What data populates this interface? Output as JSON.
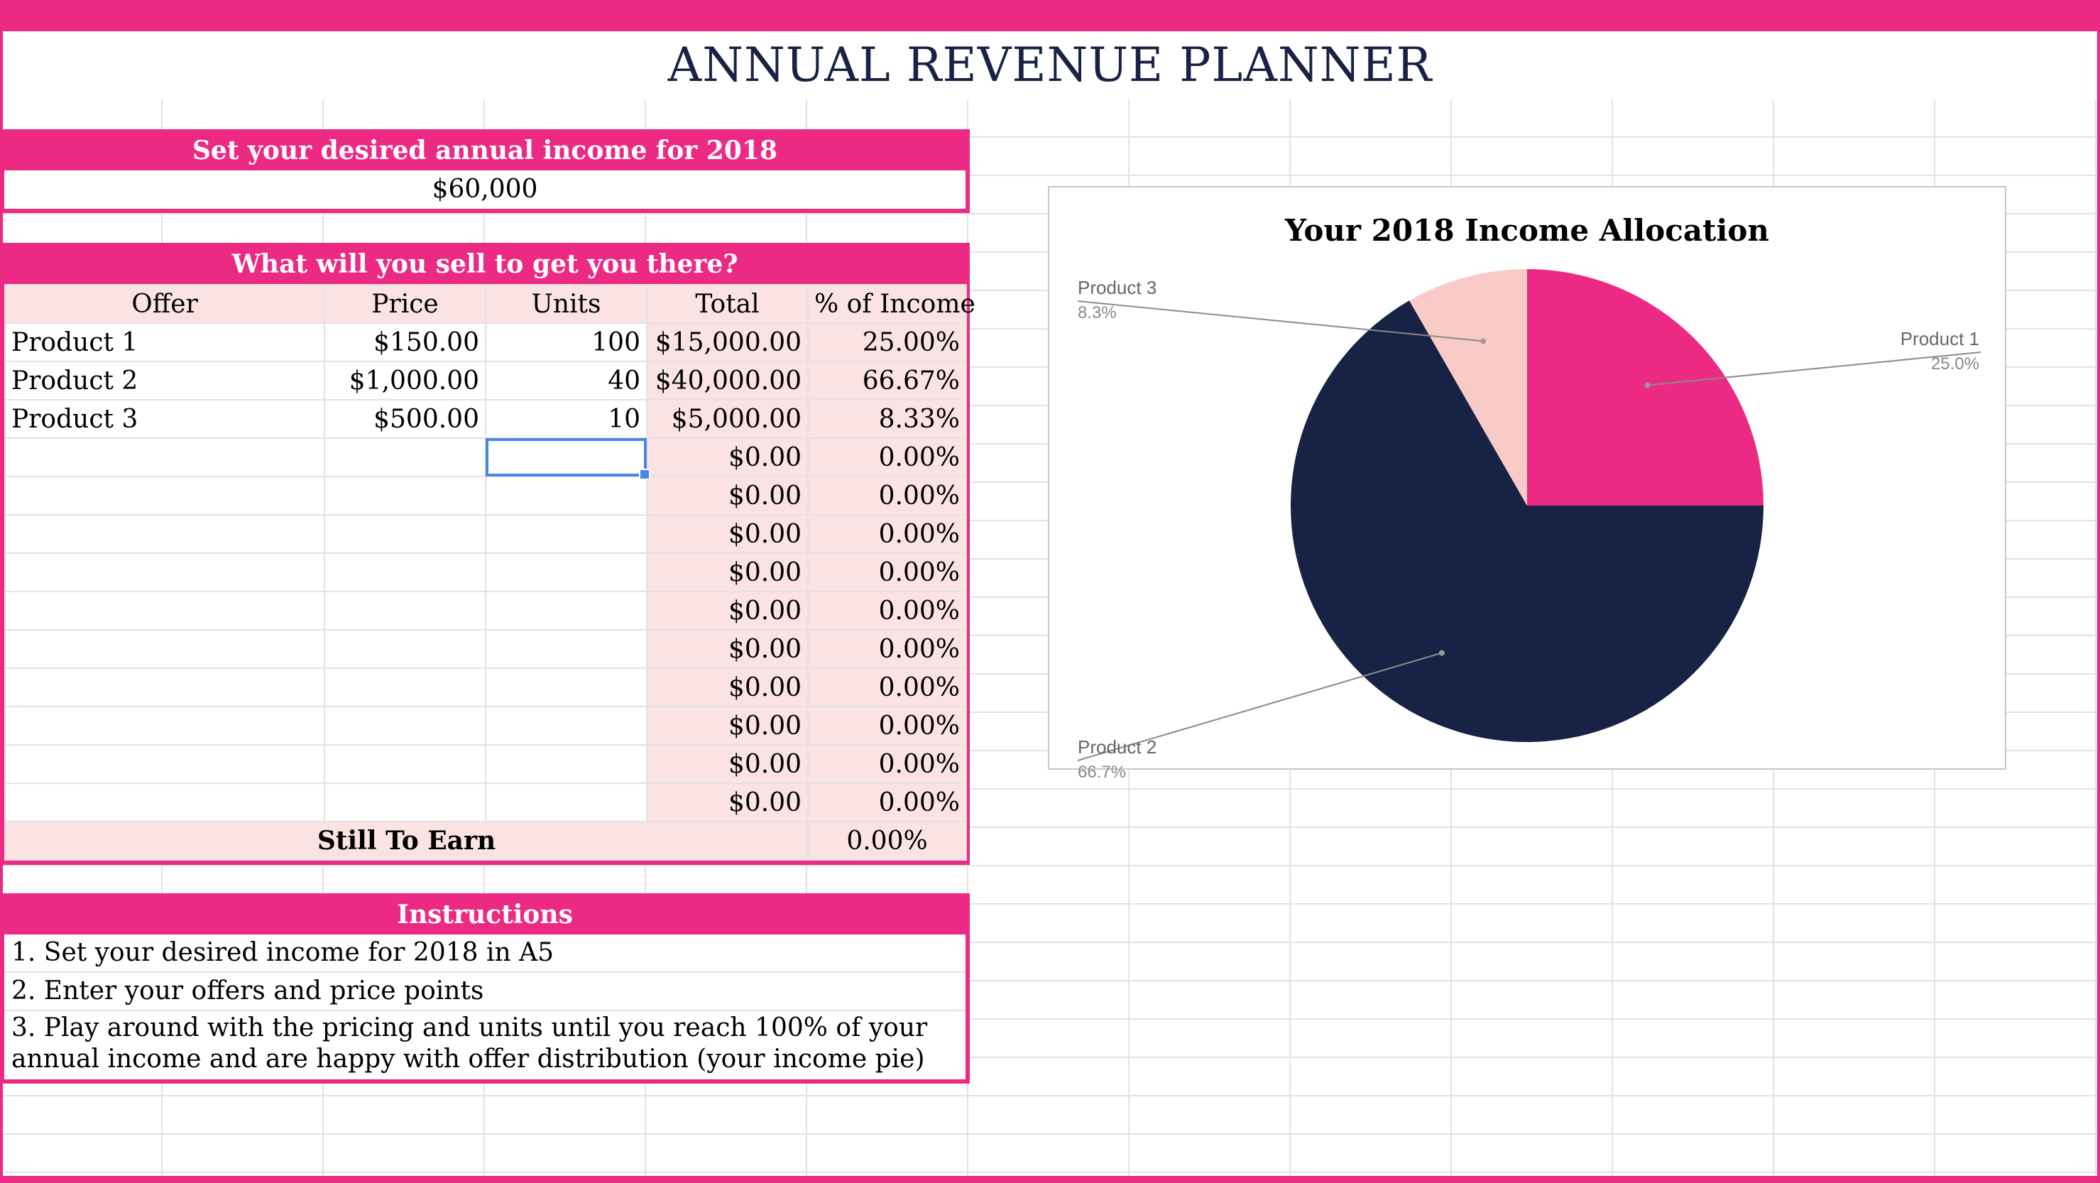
{
  "title": "ANNUAL REVENUE PLANNER",
  "income": {
    "header": "Set your desired annual income for 2018",
    "value": "$60,000"
  },
  "sell": {
    "header": "What will you sell to get you there?",
    "columns": [
      "Offer",
      "Price",
      "Units",
      "Total",
      "% of Income"
    ],
    "rows": [
      [
        "Product 1",
        "$150.00",
        "100",
        "$15,000.00",
        "25.00%"
      ],
      [
        "Product 2",
        "$1,000.00",
        "40",
        "$40,000.00",
        "66.67%"
      ],
      [
        "Product 3",
        "$500.00",
        "10",
        "$5,000.00",
        "8.33%"
      ],
      [
        "",
        "",
        "",
        "$0.00",
        "0.00%"
      ],
      [
        "",
        "",
        "",
        "$0.00",
        "0.00%"
      ],
      [
        "",
        "",
        "",
        "$0.00",
        "0.00%"
      ],
      [
        "",
        "",
        "",
        "$0.00",
        "0.00%"
      ],
      [
        "",
        "",
        "",
        "$0.00",
        "0.00%"
      ],
      [
        "",
        "",
        "",
        "$0.00",
        "0.00%"
      ],
      [
        "",
        "",
        "",
        "$0.00",
        "0.00%"
      ],
      [
        "",
        "",
        "",
        "$0.00",
        "0.00%"
      ],
      [
        "",
        "",
        "",
        "$0.00",
        "0.00%"
      ],
      [
        "",
        "",
        "",
        "$0.00",
        "0.00%"
      ]
    ],
    "total_label": "Still To Earn",
    "total_value": "0.00%"
  },
  "instructions": {
    "header": "Instructions",
    "lines": [
      "1. Set your desired income for 2018 in A5",
      "2. Enter your offers and price points",
      "3. Play around with the pricing and units until you reach 100% of your annual income and are happy with offer distribution (your income pie)"
    ]
  },
  "colors": {
    "accent": "#ec2a84",
    "navy": "#172244",
    "light_pink": "#fbe3e3",
    "selection": "#4a86e8"
  },
  "chart_data": {
    "type": "pie",
    "title": "Your 2018 Income Allocation",
    "categories": [
      "Product 1",
      "Product 2",
      "Product 3"
    ],
    "values": [
      25.0,
      66.7,
      8.3
    ],
    "labels": [
      "25.0%",
      "66.7%",
      "8.3%"
    ],
    "colors": [
      "#ec2a84",
      "#172244",
      "#f9cbc6"
    ],
    "legend": "callout-labels"
  }
}
